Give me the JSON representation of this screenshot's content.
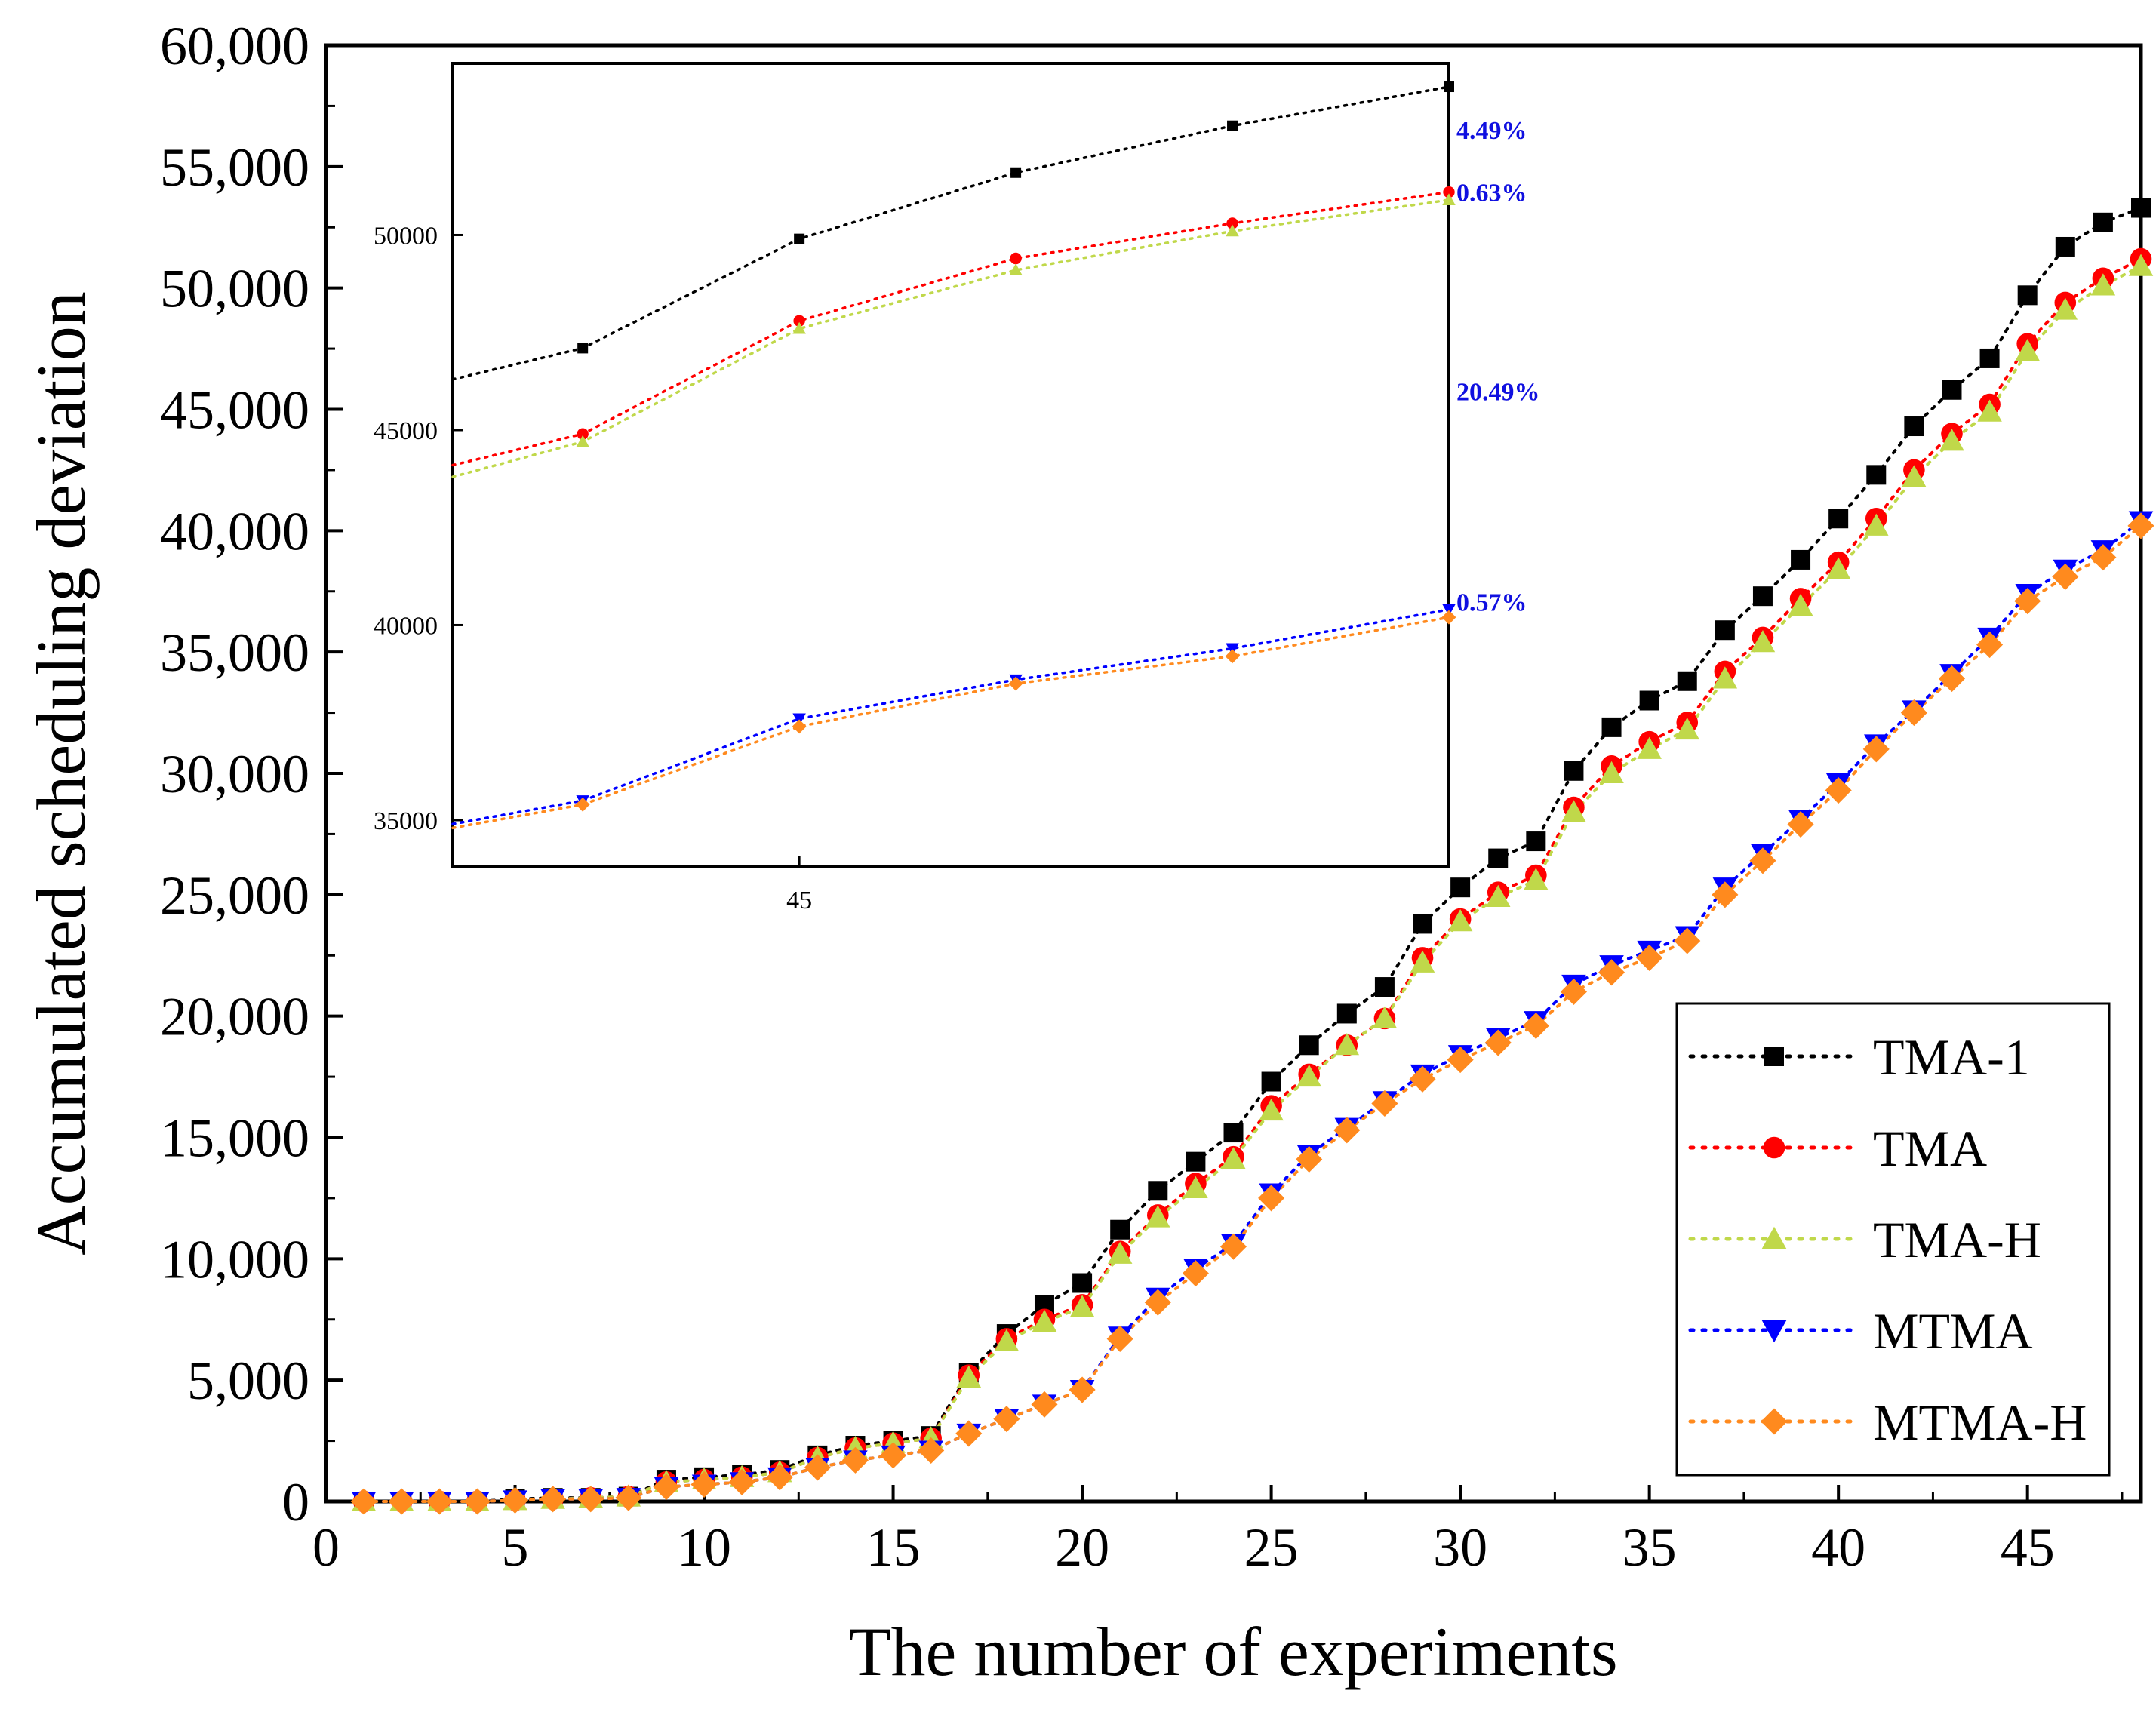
{
  "chart_data": {
    "type": "line",
    "xlabel": "The number of experiments",
    "ylabel": "Accumulated scheduling deviation",
    "xlim": [
      0,
      48
    ],
    "ylim": [
      0,
      60000
    ],
    "xticks": [
      0,
      5,
      10,
      15,
      20,
      25,
      30,
      35,
      40,
      45
    ],
    "xtick_labels": [
      "0",
      "5",
      "10",
      "15",
      "20",
      "25",
      "30",
      "35",
      "40",
      "45"
    ],
    "yticks": [
      0,
      5000,
      10000,
      15000,
      20000,
      25000,
      30000,
      35000,
      40000,
      45000,
      50000,
      55000,
      60000
    ],
    "ytick_labels": [
      "0",
      "5,000",
      "10,000",
      "15,000",
      "20,000",
      "25,000",
      "30,000",
      "35,000",
      "40,000",
      "45,000",
      "50,000",
      "55,000",
      "60,000"
    ],
    "legend_position": "bottom-right",
    "x": [
      1,
      2,
      3,
      4,
      5,
      6,
      7,
      8,
      9,
      10,
      11,
      12,
      13,
      14,
      15,
      16,
      17,
      18,
      19,
      20,
      21,
      22,
      23,
      24,
      25,
      26,
      27,
      28,
      29,
      30,
      31,
      32,
      33,
      34,
      35,
      36,
      37,
      38,
      39,
      40,
      41,
      42,
      43,
      44,
      45,
      46,
      47,
      48
    ],
    "series": [
      {
        "name": "TMA-1",
        "color": "#000000",
        "marker": "square",
        "values": [
          0,
          0,
          0,
          0,
          100,
          150,
          150,
          200,
          900,
          1000,
          1100,
          1300,
          1900,
          2300,
          2500,
          2700,
          5300,
          6900,
          8100,
          9000,
          11200,
          12800,
          14000,
          15200,
          17300,
          18800,
          20100,
          21200,
          23800,
          25300,
          26500,
          27200,
          30100,
          31900,
          33000,
          33800,
          35900,
          37300,
          38800,
          40500,
          42300,
          44300,
          45800,
          47100,
          49700,
          51700,
          52700,
          53300
        ]
      },
      {
        "name": "TMA",
        "color": "#ff0000",
        "marker": "circle",
        "values": [
          0,
          0,
          0,
          0,
          50,
          100,
          150,
          200,
          800,
          900,
          1000,
          1200,
          1800,
          2200,
          2400,
          2600,
          5200,
          6700,
          7500,
          8100,
          10300,
          11800,
          13100,
          14200,
          16300,
          17600,
          18800,
          19900,
          22400,
          24000,
          25100,
          25800,
          28600,
          30300,
          31300,
          32100,
          34200,
          35600,
          37200,
          38700,
          40500,
          42500,
          44000,
          45200,
          47700,
          49400,
          50400,
          51200
        ]
      },
      {
        "name": "TMA-H",
        "color": "#c0d84a",
        "marker": "triangle-up",
        "values": [
          0,
          0,
          0,
          0,
          50,
          100,
          150,
          200,
          800,
          900,
          1000,
          1200,
          1800,
          2200,
          2400,
          2600,
          5100,
          6600,
          7400,
          8000,
          10200,
          11700,
          12900,
          14100,
          16100,
          17500,
          18800,
          19900,
          22200,
          23900,
          24900,
          25600,
          28400,
          30000,
          31000,
          31800,
          33900,
          35400,
          36900,
          38400,
          40200,
          42200,
          43700,
          44900,
          47400,
          49100,
          50100,
          50900
        ]
      },
      {
        "name": "MTMA",
        "color": "#0000ff",
        "marker": "triangle-down",
        "values": [
          0,
          0,
          0,
          0,
          50,
          100,
          100,
          150,
          600,
          700,
          800,
          1000,
          1400,
          1700,
          1900,
          2100,
          2800,
          3400,
          4000,
          4600,
          6800,
          8400,
          9600,
          10600,
          12700,
          14300,
          15400,
          16500,
          17600,
          18400,
          19100,
          19800,
          21300,
          22100,
          22700,
          23300,
          25300,
          26700,
          28100,
          29600,
          31200,
          32600,
          34100,
          35600,
          37400,
          38400,
          39200,
          40400
        ]
      },
      {
        "name": "MTMA-H",
        "color": "#ff8a1e",
        "marker": "diamond",
        "values": [
          0,
          0,
          0,
          0,
          50,
          100,
          100,
          150,
          600,
          700,
          800,
          1000,
          1400,
          1700,
          1900,
          2100,
          2800,
          3400,
          4000,
          4600,
          6700,
          8200,
          9400,
          10500,
          12500,
          14100,
          15300,
          16400,
          17400,
          18200,
          18900,
          19600,
          21000,
          21800,
          22400,
          23100,
          25000,
          26400,
          27900,
          29300,
          31000,
          32500,
          33900,
          35300,
          37100,
          38100,
          38900,
          40200
        ]
      }
    ],
    "inset": {
      "xlim": [
        43.4,
        48
      ],
      "ylim": [
        33800,
        54400
      ],
      "xticks": [
        45
      ],
      "xtick_labels": [
        "45"
      ],
      "yticks": [
        35000,
        40000,
        45000,
        50000
      ],
      "ytick_labels": [
        "35000",
        "40000",
        "45000",
        "50000"
      ],
      "x": [
        43.4,
        44,
        45,
        46,
        47,
        48
      ],
      "series": [
        {
          "name": "TMA-1",
          "values": [
            46300,
            47100,
            49900,
            51600,
            52800,
            53800
          ]
        },
        {
          "name": "TMA",
          "values": [
            44100,
            44900,
            47800,
            49400,
            50300,
            51100
          ]
        },
        {
          "name": "TMA-H",
          "values": [
            43800,
            44700,
            47600,
            49100,
            50100,
            50900
          ]
        },
        {
          "name": "MTMA",
          "values": [
            34900,
            35500,
            37600,
            38600,
            39400,
            40400
          ]
        },
        {
          "name": "MTMA-H",
          "values": [
            34800,
            35400,
            37400,
            38500,
            39200,
            40200
          ]
        }
      ],
      "annotations": [
        {
          "text": "4.49%",
          "y": 52700
        },
        {
          "text": "0.63%",
          "y": 51100
        },
        {
          "text": "20.49%",
          "y": 46000
        },
        {
          "text": "0.57%",
          "y": 40600
        }
      ]
    }
  }
}
